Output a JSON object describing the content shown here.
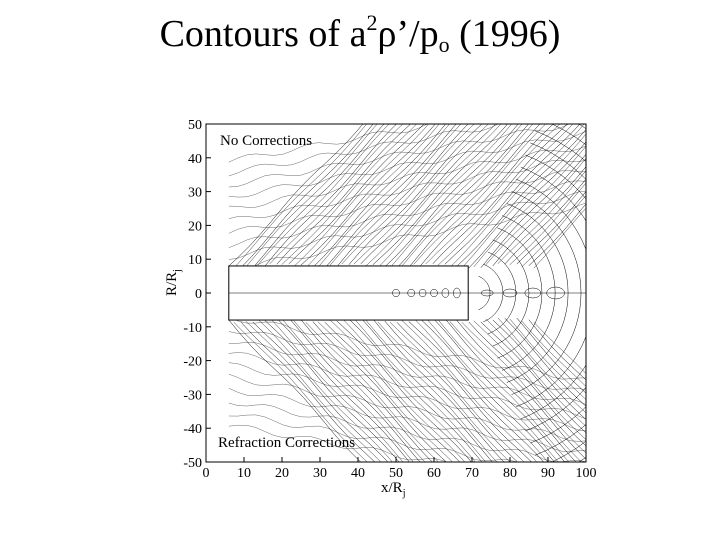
{
  "title": {
    "prefix": "Contours of a",
    "sup": "2",
    "mid": "ρ’/p",
    "sub": "o",
    "suffix": " (1996)"
  },
  "plot": {
    "panel_top_label": "No Corrections",
    "panel_bottom_label": "Refraction Corrections",
    "x_ticks": [
      "0",
      "10",
      "20",
      "30",
      "40",
      "50",
      "60",
      "70",
      "80",
      "90",
      "100"
    ],
    "y_ticks": [
      "50",
      "40",
      "30",
      "20",
      "10",
      "0",
      "-10",
      "-20",
      "-30",
      "-40",
      "-50"
    ],
    "xlabel_main": "x/R",
    "xlabel_sub": "j",
    "ylabel_main": "R/R",
    "ylabel_sub": "j",
    "xlim": [
      0,
      100
    ],
    "ylim": [
      -50,
      50
    ],
    "near_field_box": {
      "x": [
        6,
        69
      ],
      "y": [
        -8,
        8
      ]
    },
    "line_color": "#000000"
  }
}
